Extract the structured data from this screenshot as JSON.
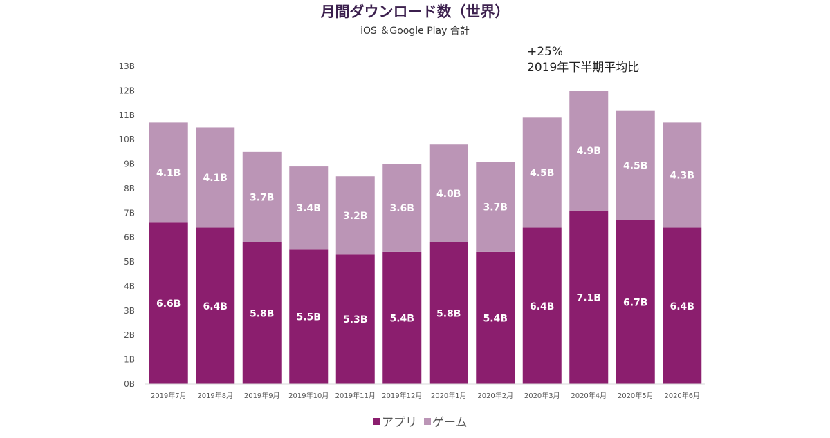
{
  "chart_data": {
    "type": "bar",
    "stacked": true,
    "title": "月間ダウンロード数（世界）",
    "subtitle": "iOS ＆Google Play 合計",
    "categories": [
      "2019年7月",
      "2019年8月",
      "2019年9月",
      "2019年10月",
      "2019年11月",
      "2019年12月",
      "2020年1月",
      "2020年2月",
      "2020年3月",
      "2020年4月",
      "2020年5月",
      "2020年6月"
    ],
    "series": [
      {
        "name": "アプリ",
        "color": "#8b1e6e",
        "values": [
          6.6,
          6.4,
          5.8,
          5.5,
          5.3,
          5.4,
          5.8,
          5.4,
          6.4,
          7.1,
          6.7,
          6.4
        ],
        "labels": [
          "6.6B",
          "6.4B",
          "5.8B",
          "5.5B",
          "5.3B",
          "5.4B",
          "5.8B",
          "5.4B",
          "6.4B",
          "7.1B",
          "6.7B",
          "6.4B"
        ]
      },
      {
        "name": "ゲーム",
        "color": "#bb95b6",
        "values": [
          4.1,
          4.1,
          3.7,
          3.4,
          3.2,
          3.6,
          4.0,
          3.7,
          4.5,
          4.9,
          4.5,
          4.3
        ],
        "labels": [
          "4.1B",
          "4.1B",
          "3.7B",
          "3.4B",
          "3.2B",
          "3.6B",
          "4.0B",
          "3.7B",
          "4.5B",
          "4.9B",
          "4.5B",
          "4.3B"
        ]
      }
    ],
    "ylim": [
      0,
      13
    ],
    "yticks": [
      "0B",
      "1B",
      "2B",
      "3B",
      "4B",
      "5B",
      "6B",
      "7B",
      "8B",
      "9B",
      "10B",
      "11B",
      "12B",
      "13B"
    ],
    "grid": false,
    "legend_position": "bottom",
    "annotation": {
      "line1": "+25%",
      "line2": "2019年下半期平均比",
      "category_index": 9
    }
  }
}
